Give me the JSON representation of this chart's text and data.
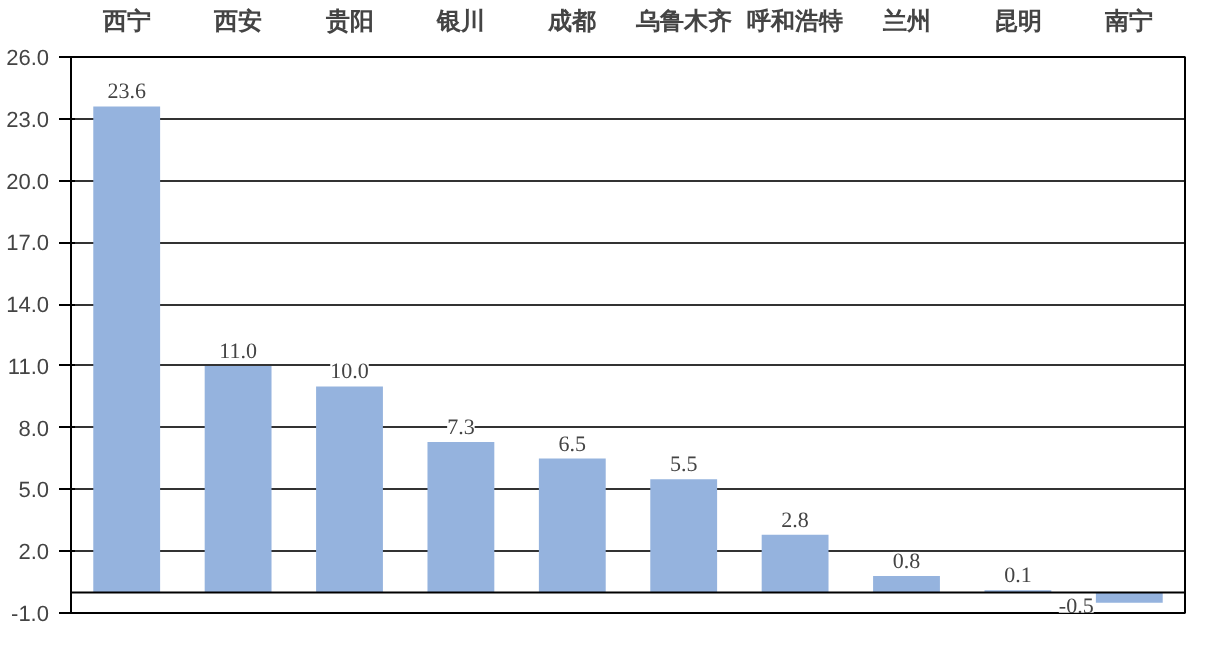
{
  "chart_data": {
    "type": "bar",
    "categories": [
      "西宁",
      "西安",
      "贵阳",
      "银川",
      "成都",
      "乌鲁木齐",
      "呼和浩特",
      "兰州",
      "昆明",
      "南宁"
    ],
    "values": [
      23.6,
      11.0,
      10.0,
      7.3,
      6.5,
      5.5,
      2.8,
      0.8,
      0.1,
      -0.5
    ],
    "value_labels": [
      "23.6",
      "11.0",
      "10.0",
      "7.3",
      "6.5",
      "5.5",
      "2.8",
      "0.8",
      "0.1",
      "-0.5"
    ],
    "color": "#95b3de",
    "ylim": [
      -1.0,
      26.0
    ],
    "yticks": [
      {
        "value": -1.0,
        "label": "-1.0"
      },
      {
        "value": 2.0,
        "label": "2.0"
      },
      {
        "value": 5.0,
        "label": "5.0"
      },
      {
        "value": 8.0,
        "label": "8.0"
      },
      {
        "value": 11.0,
        "label": "11.0"
      },
      {
        "value": 14.0,
        "label": "14.0"
      },
      {
        "value": 17.0,
        "label": "17.0"
      },
      {
        "value": 20.0,
        "label": "20.0"
      },
      {
        "value": 23.0,
        "label": "23.0"
      },
      {
        "value": 26.0,
        "label": "26.0"
      }
    ],
    "grid": "y"
  }
}
